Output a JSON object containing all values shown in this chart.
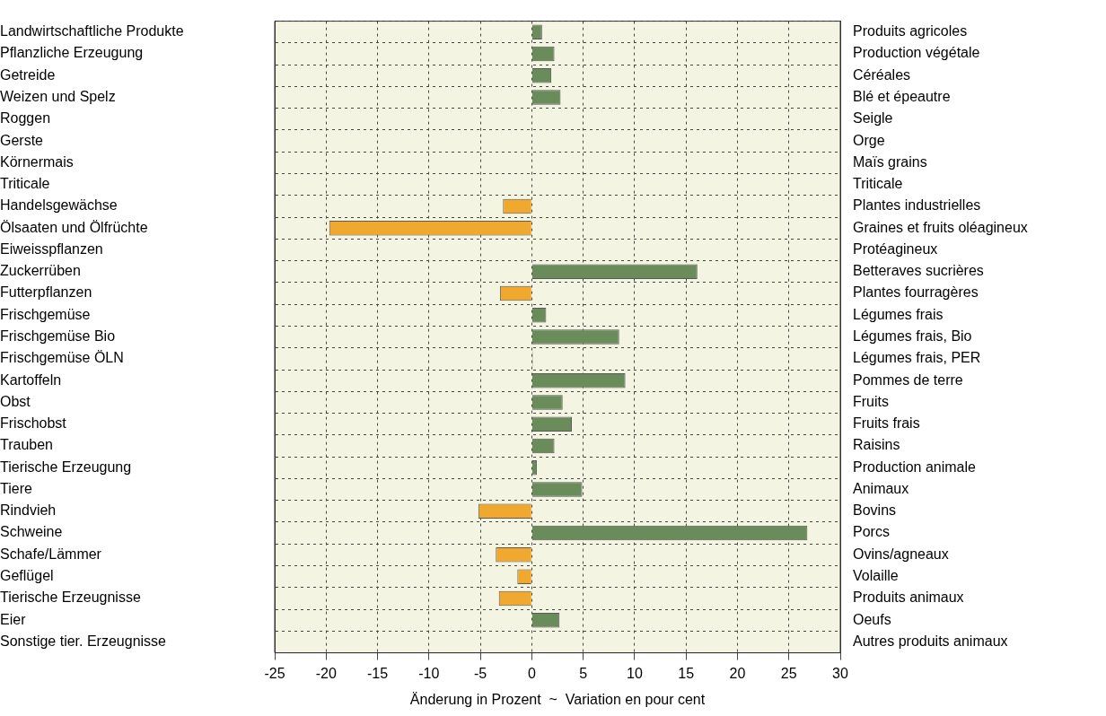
{
  "chart_data": {
    "type": "bar",
    "orientation": "horizontal",
    "categories": [
      "Landwirtschaftliche Produkte",
      "Pflanzliche Erzeugung",
      "Getreide",
      "Weizen und Spelz",
      "Roggen",
      "Gerste",
      "Körnermais",
      "Triticale",
      "Handelsgewächse",
      "Ölsaaten und Ölfrüchte",
      "Eiweisspflanzen",
      "Zuckerrüben",
      "Futterpflanzen",
      "Frischgemüse",
      "Frischgemüse Bio",
      "Frischgemüse ÖLN",
      "Kartoffeln",
      "Obst",
      "Frischobst",
      "Trauben",
      "Tierische Erzeugung",
      "Tiere",
      "Rindvieh",
      "Schweine",
      "Schafe/Lämmer",
      "Geflügel",
      "Tierische Erzeugnisse",
      "Eier",
      "Sonstige tier. Erzeugnisse"
    ],
    "y2_categories": [
      "Produits agricoles",
      "Production végétale",
      "Céréales",
      "Blé et épeautre",
      "Seigle",
      "Orge",
      "Maïs grains",
      "Triticale",
      "Plantes industrielles",
      "Graines et fruits oléagineux",
      "Protéagineux",
      "Betteraves sucrières",
      "Plantes fourragères",
      "Légumes frais",
      "Légumes frais, Bio",
      "Légumes frais, PER",
      "Pommes de terre",
      "Fruits",
      "Fruits frais",
      "Raisins",
      "Production animale",
      "Animaux",
      "Bovins",
      "Porcs",
      "Ovins/agneaux",
      "Volaille",
      "Produits animaux",
      "Oeufs",
      "Autres produits animaux"
    ],
    "values": [
      1.0,
      2.2,
      1.9,
      2.8,
      0,
      0,
      0,
      0,
      -2.8,
      -19.7,
      0,
      16.1,
      -3.1,
      1.4,
      8.5,
      0.1,
      9.1,
      3.0,
      3.9,
      2.2,
      0.5,
      4.9,
      -5.2,
      26.8,
      -3.5,
      -1.4,
      -3.2,
      2.7,
      0
    ],
    "colors": [
      "#6a8c5b",
      "#6a8c5b",
      "#6a8c5b",
      "#6a8c5b",
      "#6a8c5b",
      "#6a8c5b",
      "#6a8c5b",
      "#6a8c5b",
      "#f0a82e",
      "#f0a82e",
      "#6a8c5b",
      "#6a8c5b",
      "#f0a82e",
      "#6a8c5b",
      "#6a8c5b",
      "#6a8c5b",
      "#6a8c5b",
      "#6a8c5b",
      "#6a8c5b",
      "#6a8c5b",
      "#6a8c5b",
      "#6a8c5b",
      "#f0a82e",
      "#6a8c5b",
      "#f0a82e",
      "#f0a82e",
      "#f0a82e",
      "#6a8c5b",
      "#6a8c5b"
    ],
    "xlim": [
      -25,
      30
    ],
    "xticks": [
      -25,
      -20,
      -15,
      -10,
      -5,
      0,
      5,
      10,
      15,
      20,
      25,
      30
    ],
    "xlabel": "Änderung in Prozent  ~  Variation en pour cent",
    "grid": true
  }
}
